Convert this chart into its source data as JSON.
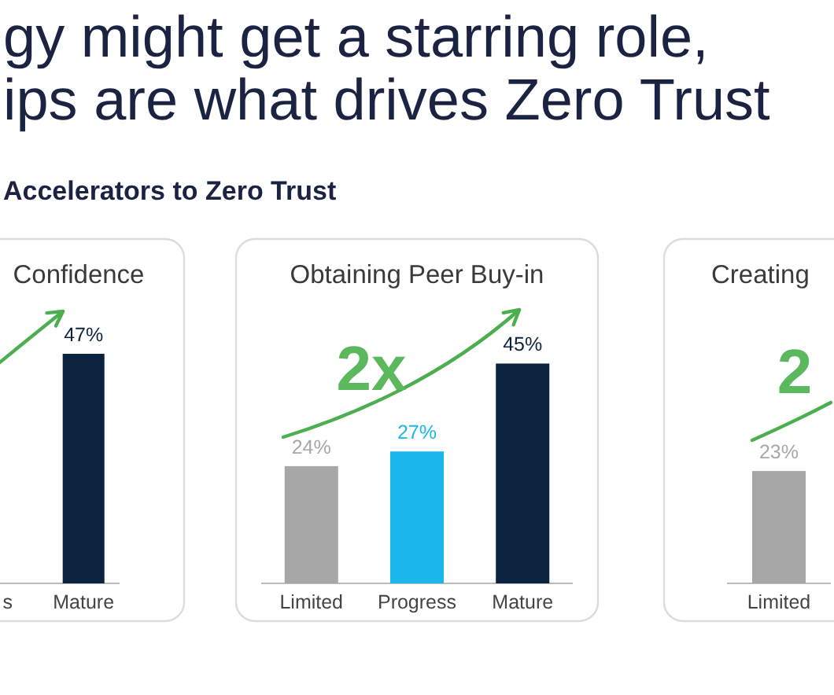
{
  "chart_data": [
    {
      "type": "other",
      "title": "gy might get a starring role,\nips are what drives Zero Trust",
      "subtitle": "Accelerators to Zero Trust"
    },
    {
      "type": "bar",
      "title": "Confidence",
      "categories": [
        "s",
        "Mature"
      ],
      "values": [
        null,
        47
      ],
      "colors": [
        "#1ab7ea",
        "#0c2340"
      ],
      "value_labels": [
        null,
        "47%"
      ]
    },
    {
      "type": "bar",
      "title": "Obtaining Peer Buy-in",
      "categories": [
        "Limited",
        "Progress",
        "Mature"
      ],
      "values": [
        24,
        27,
        45
      ],
      "colors": [
        "#a7a7a7",
        "#1ab7ea",
        "#0c2340"
      ],
      "value_labels": [
        "24%",
        "27%",
        "45%"
      ],
      "annotations": [
        "2x"
      ]
    },
    {
      "type": "bar",
      "title": "Creating",
      "categories": [
        "Limited"
      ],
      "values": [
        23
      ],
      "colors": [
        "#a7a7a7"
      ],
      "value_labels": [
        "23%"
      ],
      "annotations": [
        "2"
      ]
    }
  ]
}
